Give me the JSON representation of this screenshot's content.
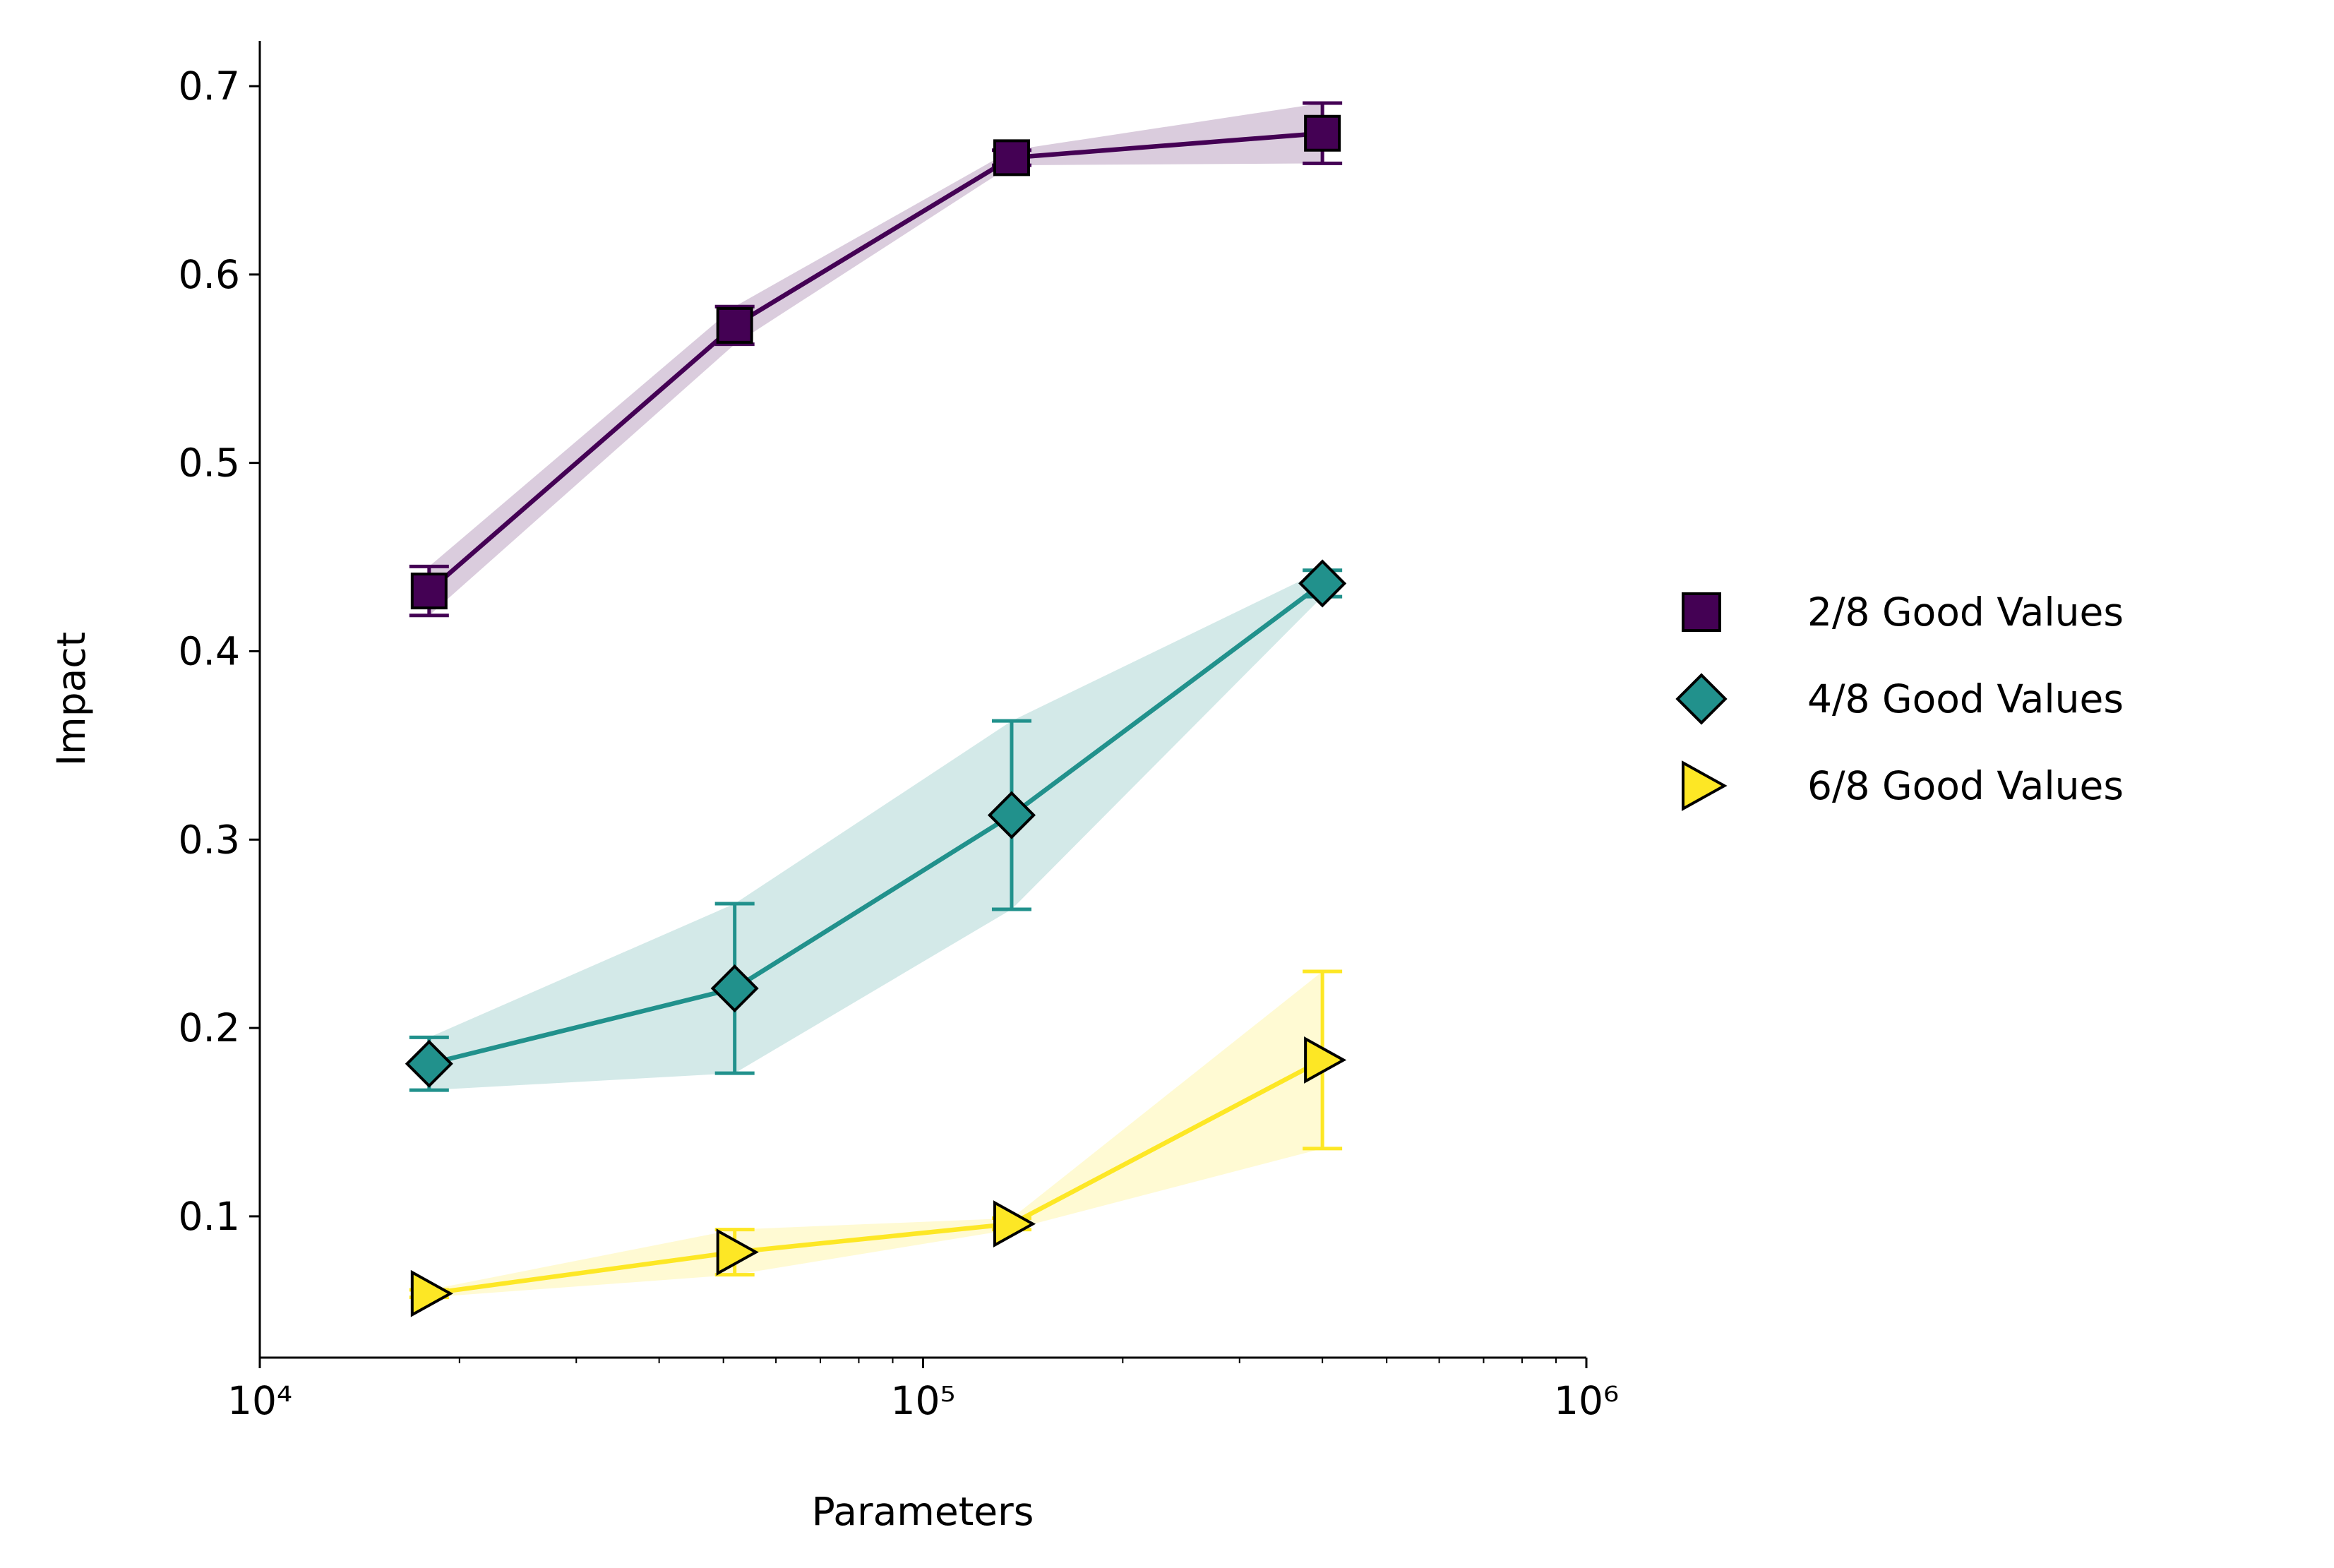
{
  "chart_data": {
    "type": "line",
    "x_label": "Parameters",
    "y_label": "Impact",
    "x": [
      18000,
      52000,
      136000,
      400000
    ],
    "xlog": true,
    "xlim": [
      10000,
      1000000
    ],
    "xticks": [
      {
        "value": 10000,
        "label": "10⁴"
      },
      {
        "value": 100000,
        "label": "10⁵"
      },
      {
        "value": 1000000,
        "label": "10⁶"
      }
    ],
    "xminorticks": [
      20000,
      30000,
      40000,
      50000,
      60000,
      70000,
      80000,
      90000,
      200000,
      300000,
      400000,
      500000,
      600000,
      700000,
      800000,
      900000
    ],
    "ylim": [
      0.025,
      0.724
    ],
    "yticks": [
      0.1,
      0.2,
      0.3,
      0.4,
      0.5,
      0.6,
      0.7
    ],
    "legend": "right",
    "series": [
      {
        "name": "2/8 Good Values",
        "color": "#440154",
        "marker": "square",
        "values": [
          0.432,
          0.573,
          0.662,
          0.675
        ],
        "errors": [
          0.013,
          0.01,
          0.004,
          0.016
        ]
      },
      {
        "name": "4/8 Good Values",
        "color": "#21918c",
        "marker": "diamond",
        "values": [
          0.181,
          0.221,
          0.313,
          0.436
        ],
        "errors": [
          0.014,
          0.045,
          0.05,
          0.007
        ]
      },
      {
        "name": "6/8 Good Values",
        "color": "#fde725",
        "marker": "triangle-right",
        "values": [
          0.059,
          0.081,
          0.096,
          0.183
        ],
        "errors": [
          0.002,
          0.012,
          0.003,
          0.047
        ]
      }
    ]
  }
}
